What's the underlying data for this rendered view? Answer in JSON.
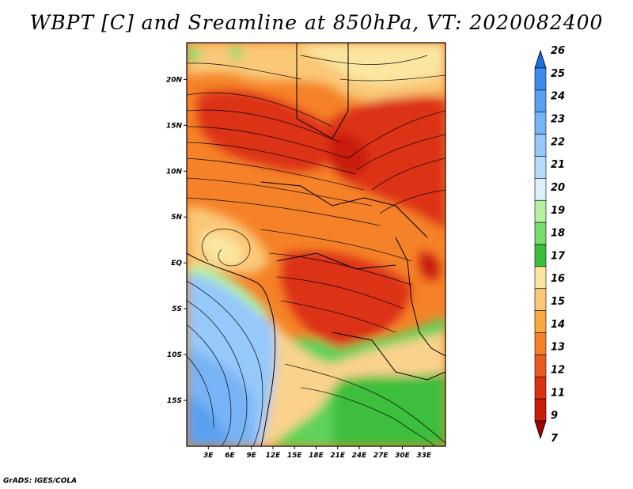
{
  "title": "WBPT [C] and Sreamline at 850hPa, VT: 2020082400",
  "credit": "GrADS: IGES/COLA",
  "map": {
    "lon_range": [
      0,
      36
    ],
    "lat_range": [
      -20,
      24
    ],
    "x_ticks": [
      {
        "value": 3,
        "label": "3E"
      },
      {
        "value": 6,
        "label": "6E"
      },
      {
        "value": 9,
        "label": "9E"
      },
      {
        "value": 12,
        "label": "12E"
      },
      {
        "value": 15,
        "label": "15E"
      },
      {
        "value": 18,
        "label": "18E"
      },
      {
        "value": 21,
        "label": "21E"
      },
      {
        "value": 24,
        "label": "24E"
      },
      {
        "value": 27,
        "label": "27E"
      },
      {
        "value": 30,
        "label": "30E"
      },
      {
        "value": 33,
        "label": "33E"
      }
    ],
    "y_ticks": [
      {
        "value": 20,
        "label": "20N"
      },
      {
        "value": 15,
        "label": "15N"
      },
      {
        "value": 10,
        "label": "10N"
      },
      {
        "value": 5,
        "label": "5N"
      },
      {
        "value": 0,
        "label": "EQ"
      },
      {
        "value": -5,
        "label": "5S"
      },
      {
        "value": -10,
        "label": "10S"
      },
      {
        "value": -15,
        "label": "15S"
      }
    ]
  },
  "colorbar": {
    "levels": [
      "7",
      "9",
      "11",
      "12",
      "13",
      "14",
      "15",
      "16",
      "17",
      "18",
      "19",
      "20",
      "21",
      "22",
      "23",
      "24",
      "25",
      "26"
    ],
    "colors": [
      "#1e6ee0",
      "#3c8cf0",
      "#5aa0f0",
      "#78b4f5",
      "#96c8fa",
      "#b4dcfa",
      "#dcf0fa",
      "#b4f0a0",
      "#78dc6e",
      "#3cbe3c",
      "#fae6a0",
      "#fac878",
      "#faaa3c",
      "#f58228",
      "#eb5a1e",
      "#dc3214",
      "#c81e0a",
      "#a00000"
    ]
  }
}
